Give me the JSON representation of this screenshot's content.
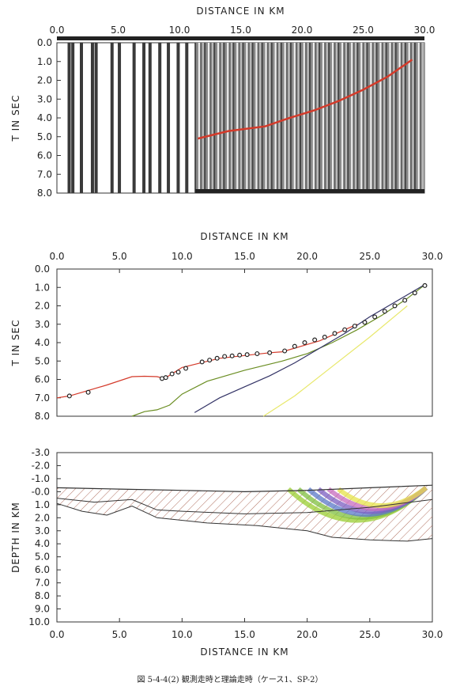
{
  "caption": "図 5-4-4(2) 観測走時と理論走時（ケース1、SP-2）",
  "chart_data": [
    {
      "type": "seismic-record-section",
      "xlabel": "DISTANCE IN KM",
      "ylabel": "T IN SEC",
      "xlim": [
        0,
        30
      ],
      "ylim": [
        0,
        8
      ],
      "x_ticks": [
        "0.0",
        "5.0",
        "10.0",
        "15.0",
        "20.0",
        "25.0",
        "30.0"
      ],
      "y_ticks": [
        "0.0",
        "1.0",
        "2.0",
        "3.0",
        "4.0",
        "5.0",
        "6.0",
        "7.0",
        "8.0"
      ],
      "picked_first_arrivals": {
        "color": "#d43a2a",
        "x": [
          11.5,
          14,
          17,
          19,
          21,
          23,
          25,
          27,
          29
        ],
        "y": [
          5.1,
          4.7,
          4.45,
          4.0,
          3.6,
          3.1,
          2.5,
          1.8,
          0.9
        ]
      }
    },
    {
      "type": "line",
      "xlabel": "DISTANCE IN KM",
      "ylabel": "T IN SEC",
      "xlim": [
        0,
        30
      ],
      "ylim": [
        0,
        8
      ],
      "x_ticks": [
        "0.0",
        "5.0",
        "10.0",
        "15.0",
        "20.0",
        "25.0",
        "30.0"
      ],
      "y_ticks": [
        "0.0",
        "1.0",
        "2.0",
        "3.0",
        "4.0",
        "5.0",
        "6.0",
        "7.0",
        "8.0"
      ],
      "series": [
        {
          "color": "#d43a2a",
          "x": [
            0,
            1,
            2,
            4,
            6,
            7,
            8,
            8.6,
            10,
            11.5,
            13,
            15,
            17,
            18,
            19,
            20,
            21,
            22,
            23,
            24
          ],
          "y": [
            7.0,
            6.9,
            6.7,
            6.3,
            5.85,
            5.83,
            5.85,
            5.95,
            5.35,
            5.1,
            4.85,
            4.7,
            4.55,
            4.5,
            4.3,
            4.1,
            3.9,
            3.6,
            3.3,
            3.0
          ]
        },
        {
          "color": "#6b8e23",
          "x": [
            6,
            7,
            8,
            9,
            10,
            12,
            15,
            18,
            20,
            22,
            24,
            26,
            28,
            29.5
          ],
          "y": [
            8.0,
            7.75,
            7.65,
            7.4,
            6.8,
            6.1,
            5.5,
            5.0,
            4.6,
            4.0,
            3.3,
            2.5,
            1.6,
            0.8
          ]
        },
        {
          "color": "#333366",
          "x": [
            11,
            13,
            15,
            17,
            19,
            21,
            23,
            25,
            27,
            29.5
          ],
          "y": [
            7.8,
            7.0,
            6.4,
            5.8,
            5.1,
            4.3,
            3.5,
            2.6,
            1.8,
            0.8
          ]
        },
        {
          "color": "#e8e86a",
          "x": [
            16.5,
            19,
            22,
            25,
            28
          ],
          "y": [
            8.0,
            6.9,
            5.3,
            3.7,
            2.0
          ]
        }
      ],
      "observed_points": {
        "x": [
          1,
          2.5,
          8.4,
          8.7,
          9.2,
          9.7,
          10.3,
          11.6,
          12.2,
          12.8,
          13.4,
          14,
          14.6,
          15.2,
          16,
          17,
          18.2,
          19,
          19.8,
          20.6,
          21.4,
          22.2,
          23,
          23.8,
          24.6,
          25.4,
          26.2,
          27,
          27.8,
          28.6,
          29.4
        ],
        "y": [
          6.9,
          6.7,
          5.95,
          5.9,
          5.7,
          5.6,
          5.4,
          5.05,
          4.95,
          4.85,
          4.75,
          4.72,
          4.68,
          4.65,
          4.6,
          4.55,
          4.45,
          4.2,
          4.0,
          3.85,
          3.7,
          3.5,
          3.3,
          3.1,
          2.9,
          2.6,
          2.3,
          2.0,
          1.7,
          1.3,
          0.9
        ]
      }
    },
    {
      "type": "cross-section",
      "xlabel": "DISTANCE IN KM",
      "ylabel": "DEPTH IN KM",
      "xlim": [
        0,
        30
      ],
      "ylim": [
        -3,
        10
      ],
      "x_ticks": [
        "0.0",
        "5.0",
        "10.0",
        "15.0",
        "20.0",
        "25.0",
        "30.0"
      ],
      "y_ticks": [
        "-3.0",
        "-2.0",
        "-1.0",
        "-0.0",
        "1.0",
        "2.0",
        "3.0",
        "4.0",
        "5.0",
        "6.0",
        "7.0",
        "8.0",
        "9.0",
        "10.0"
      ],
      "surface": {
        "x": [
          0,
          5,
          10,
          15,
          20,
          25,
          30
        ],
        "y": [
          -0.3,
          -0.2,
          -0.1,
          0.0,
          -0.1,
          -0.3,
          -0.5
        ]
      },
      "layer_1": {
        "x": [
          0,
          3,
          6,
          8,
          10,
          15,
          20,
          25,
          30
        ],
        "y": [
          0.5,
          0.8,
          0.6,
          1.4,
          1.5,
          1.7,
          1.6,
          1.2,
          0.6
        ]
      },
      "basement": {
        "x": [
          0,
          2,
          4,
          6,
          8,
          12,
          16,
          20,
          22,
          25,
          28,
          30
        ],
        "y": [
          0.9,
          1.5,
          1.8,
          1.1,
          2.0,
          2.4,
          2.6,
          3.0,
          3.5,
          3.7,
          3.8,
          3.6
        ]
      }
    }
  ]
}
